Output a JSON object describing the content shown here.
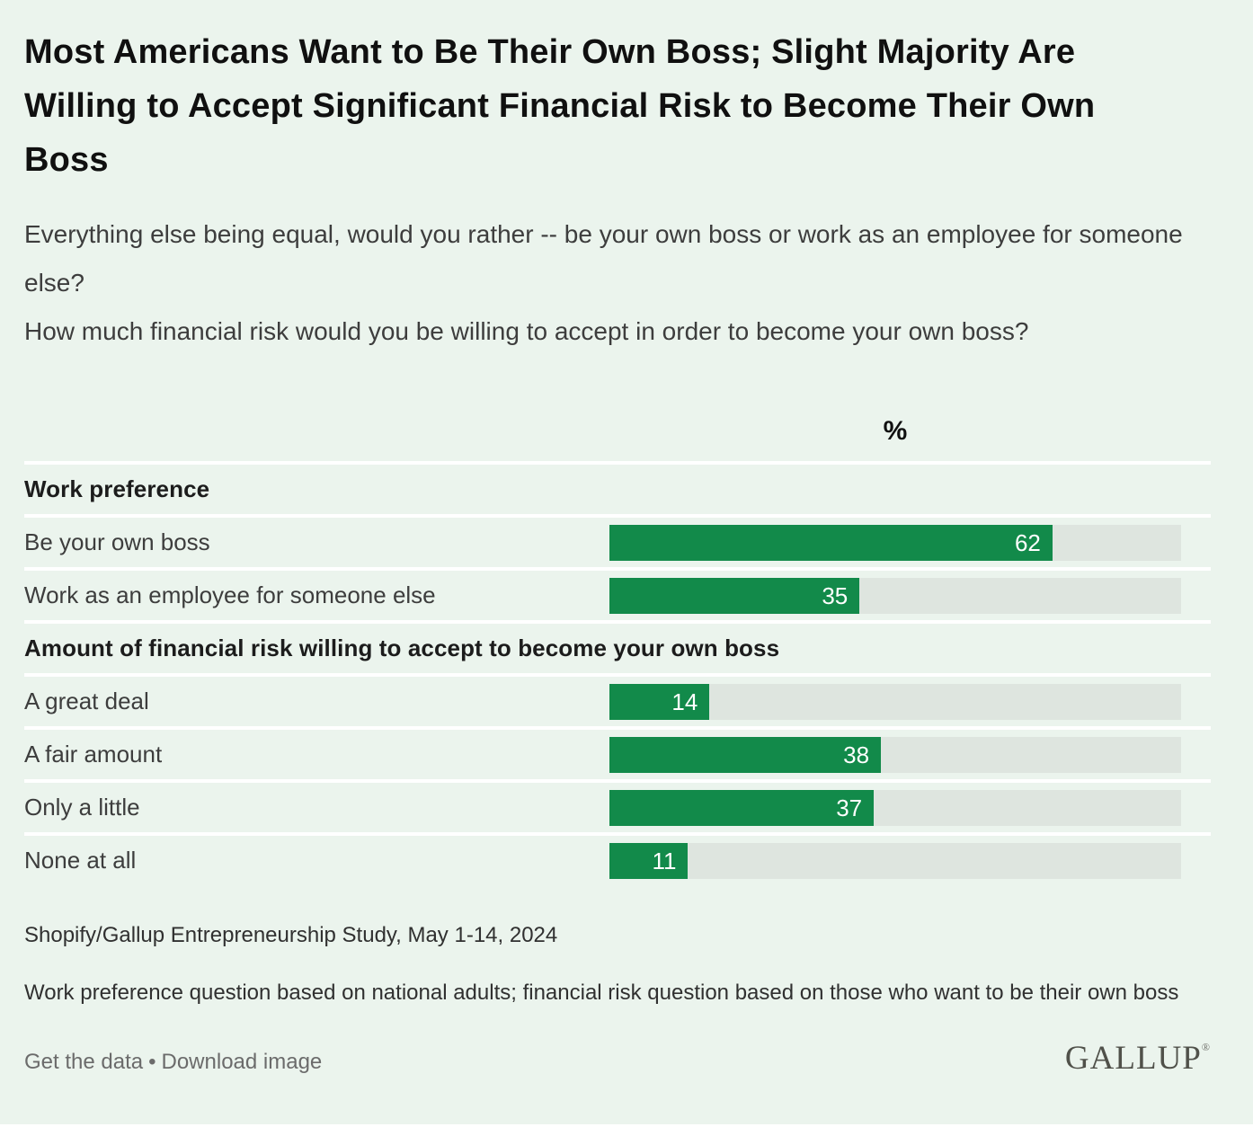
{
  "page": {
    "title": "Most Americans Want to Be Their Own Boss; Slight Majority Are Willing to Accept Significant Financial Risk to Become Their Own Boss",
    "question1": "Everything else being equal, would you rather -- be your own boss or work as an employee for someone else?",
    "question2": "How much financial risk would you be willing to accept in order to become your own boss?"
  },
  "chart_data": {
    "type": "bar",
    "orientation": "horizontal",
    "unit_header": "%",
    "axis_max": 80,
    "bar_color": "#128a4a",
    "track_color": "#dee5df",
    "background_color": "#ebf4ed",
    "sections": [
      {
        "heading": "Work preference",
        "rows": [
          {
            "label": "Be your own boss",
            "value": 62
          },
          {
            "label": "Work as an employee for someone else",
            "value": 35
          }
        ]
      },
      {
        "heading": "Amount of financial risk willing to accept to become your own boss",
        "rows": [
          {
            "label": "A great deal",
            "value": 14
          },
          {
            "label": "A fair amount",
            "value": 38
          },
          {
            "label": "Only a little",
            "value": 37
          },
          {
            "label": "None at all",
            "value": 11
          }
        ]
      }
    ]
  },
  "footer": {
    "source": "Shopify/Gallup Entrepreneurship Study, May 1-14, 2024",
    "note": "Work preference question based on national adults; financial risk question based on those who want to be their own boss",
    "link1": "Get the data",
    "separator": "•",
    "link2": "Download image",
    "logo": "GALLUP",
    "logo_mark": "®"
  }
}
